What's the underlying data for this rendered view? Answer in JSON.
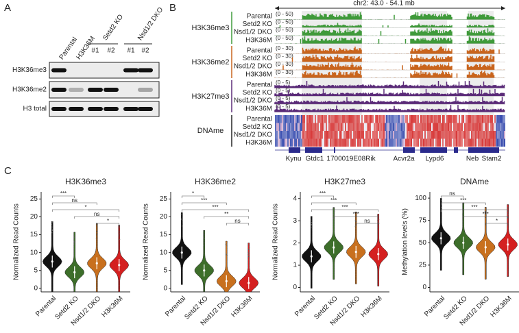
{
  "panel_a": {
    "label": "A",
    "lanes": [
      "Parental",
      "H3K36M"
    ],
    "groups": [
      {
        "name": "Setd2 KO",
        "clones": [
          "#1",
          "#2"
        ]
      },
      {
        "name": "Nsd1/2 DKO",
        "clones": [
          "#1",
          "#2"
        ]
      }
    ],
    "rows": [
      "H3K36me3",
      "H3K36me2",
      "H3 total"
    ]
  },
  "panel_b": {
    "label": "B",
    "region": "chr2: 43.0 - 54.1 mb",
    "tracks": [
      {
        "name": "H3K36me3",
        "color": "#3f9a3a",
        "range": "(0 - 50)",
        "samples": [
          "Parental",
          "Setd2 KO",
          "Nsd1/2 DKO",
          "H3K36M"
        ]
      },
      {
        "name": "H3K36me2",
        "color": "#c9641c",
        "range": "(0 - 30)",
        "samples": [
          "Parental",
          "Setd2 KO",
          "Nsd1/2 DKO",
          "H3K36M"
        ]
      },
      {
        "name": "H3K27me3",
        "color": "#5a2a78",
        "range": "(0 - 5)",
        "samples": [
          "Parental",
          "Setd2 KO",
          "Nsd1/2 DKO",
          "H3K36M"
        ]
      }
    ],
    "heatmap": {
      "name": "DNAme",
      "samples": [
        "Parental",
        "Setd2 KO",
        "Nsd1/2 DKO",
        "H3K36M"
      ]
    },
    "genes": [
      "Kynu",
      "Gtdc1",
      "1700019E08Rik",
      "Acvr2a",
      "Lypd6",
      "Neb",
      "Stam2"
    ]
  },
  "panel_c": {
    "label": "C"
  },
  "chart_data": [
    {
      "type": "violin",
      "title": "H3K36me3",
      "y_label": "Normalized Read Counts",
      "categories": [
        "Parental",
        "Setd2 KO",
        "Nsd1/2 DKO",
        "H3K36M"
      ],
      "values": [
        7.5,
        4.5,
        7,
        6.5
      ],
      "colors": [
        "#111111",
        "#3d6e2a",
        "#c8701e",
        "#d42020"
      ],
      "ylim": [
        -1,
        27
      ],
      "yticks": [
        0,
        5,
        10,
        15,
        20,
        25
      ],
      "significance": [
        "***",
        "ns",
        "*",
        "ns",
        "*"
      ]
    },
    {
      "type": "violin",
      "title": "H3K36me2",
      "y_label": "Normalized Read Counts",
      "categories": [
        "Parental",
        "Setd2 KO",
        "Nsd1/2 DKO",
        "H3K36M"
      ],
      "values": [
        10,
        5,
        2,
        1.5
      ],
      "colors": [
        "#111111",
        "#3d6e2a",
        "#c8701e",
        "#d42020"
      ],
      "ylim": [
        -1,
        27
      ],
      "yticks": [
        0,
        5,
        10,
        15,
        20,
        25
      ],
      "significance": [
        "*",
        "***",
        "***",
        "**",
        "ns"
      ]
    },
    {
      "type": "violin",
      "title": "H3K27me3",
      "y_label": "Normalized Read Counts",
      "categories": [
        "Parental",
        "Setd2 KO",
        "Nsd1/2 DKO",
        "H3K36M"
      ],
      "values": [
        1.4,
        1.8,
        1.6,
        1.5
      ],
      "colors": [
        "#111111",
        "#3d6e2a",
        "#c8701e",
        "#d42020"
      ],
      "ylim": [
        -0.2,
        4.3
      ],
      "yticks": [
        0,
        1,
        2,
        3,
        4
      ],
      "significance": [
        "***",
        "***",
        "***",
        "***",
        "ns"
      ]
    },
    {
      "type": "violin",
      "title": "DNAme",
      "y_label": "Methylation levels (%)",
      "categories": [
        "Parental",
        "Setd2 KO",
        "Nsd1/2 DKO",
        "H3K36M"
      ],
      "values": [
        55,
        50,
        45,
        48
      ],
      "colors": [
        "#111111",
        "#3d6e2a",
        "#c8701e",
        "#d42020"
      ],
      "ylim": [
        -5,
        107
      ],
      "yticks": [
        0,
        25,
        50,
        75,
        100
      ],
      "significance": [
        "ns",
        "***",
        "***",
        "***",
        "*"
      ]
    }
  ]
}
